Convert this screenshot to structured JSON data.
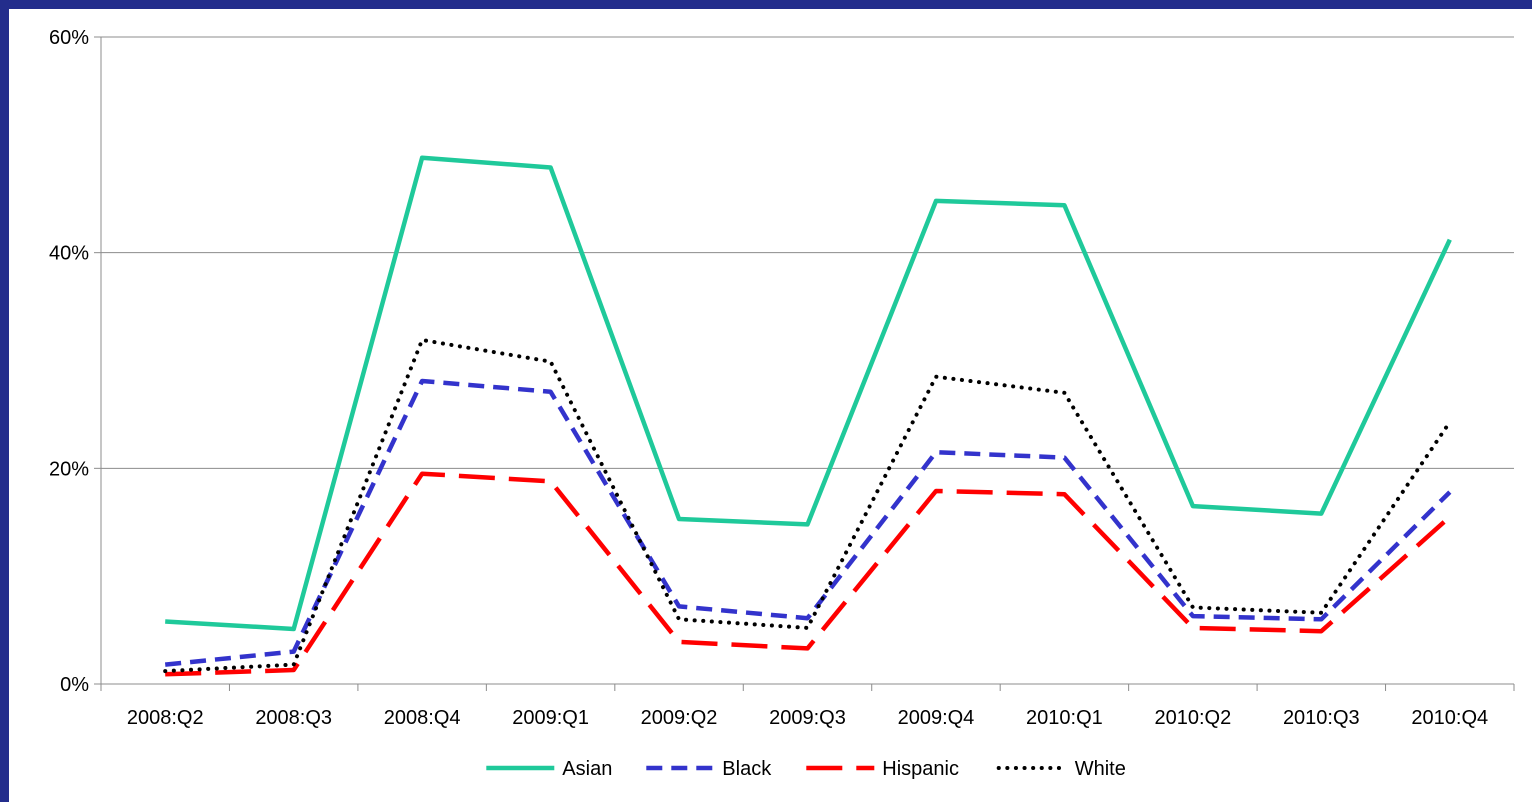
{
  "chart_data": {
    "type": "line",
    "title": "",
    "xlabel": "",
    "ylabel": "",
    "categories": [
      "2008:Q2",
      "2008:Q3",
      "2008:Q4",
      "2009:Q1",
      "2009:Q2",
      "2009:Q3",
      "2009:Q4",
      "2010:Q1",
      "2010:Q2",
      "2010:Q3",
      "2010:Q4"
    ],
    "ylim": [
      0,
      60
    ],
    "yticks": [
      0,
      20,
      40,
      60
    ],
    "ytick_labels": [
      "0%",
      "20%",
      "40%",
      "60%"
    ],
    "grid": true,
    "legend_position": "bottom",
    "series": [
      {
        "name": "Asian",
        "color": "#1fc99a",
        "style": "solid",
        "values": [
          5.8,
          5.1,
          48.8,
          47.9,
          15.3,
          14.8,
          44.8,
          44.4,
          16.5,
          15.8,
          41.2
        ]
      },
      {
        "name": "Black",
        "color": "#3333cc",
        "style": "dashed",
        "values": [
          1.8,
          3.0,
          28.1,
          27.1,
          7.2,
          6.1,
          21.5,
          21.0,
          6.3,
          6.0,
          17.8
        ]
      },
      {
        "name": "Hispanic",
        "color": "#ff0000",
        "style": "long-dash",
        "values": [
          0.9,
          1.3,
          19.5,
          18.8,
          3.9,
          3.3,
          17.9,
          17.6,
          5.2,
          4.9,
          15.5
        ]
      },
      {
        "name": "White",
        "color": "#000000",
        "style": "dotted",
        "values": [
          1.2,
          1.8,
          31.9,
          29.9,
          6.0,
          5.2,
          28.5,
          27.0,
          7.1,
          6.6,
          24.3
        ]
      }
    ]
  }
}
